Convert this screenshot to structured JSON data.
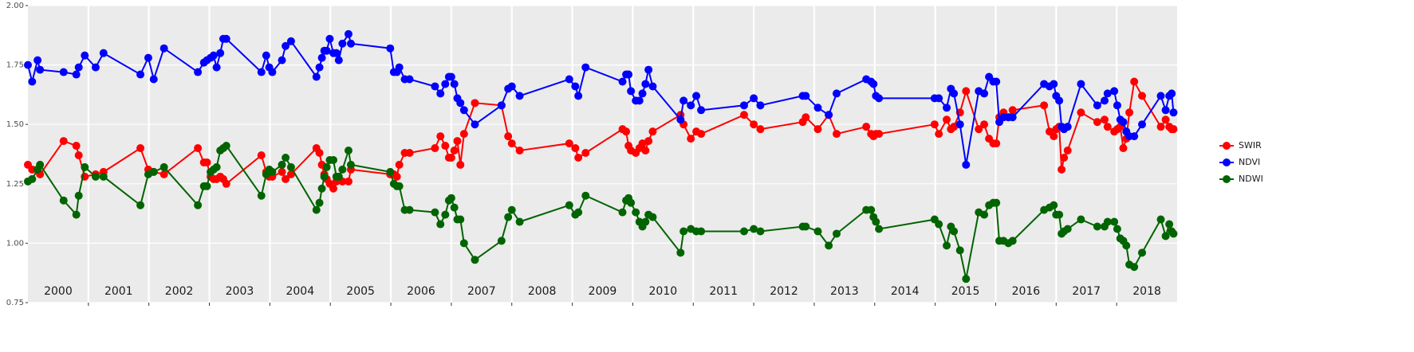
{
  "chart_data": {
    "type": "line",
    "x": [
      2000.0,
      2000.07,
      2000.16,
      2000.2,
      2000.59,
      2000.8,
      2000.84,
      2000.94,
      2001.12,
      2001.25,
      2001.86,
      2001.99,
      2002.08,
      2002.25,
      2002.81,
      2002.91,
      2002.96,
      2003.02,
      2003.07,
      2003.12,
      2003.18,
      2003.23,
      2003.28,
      2003.86,
      2003.94,
      2003.99,
      2004.04,
      2004.2,
      2004.26,
      2004.35,
      2004.77,
      2004.82,
      2004.86,
      2004.9,
      2004.94,
      2004.99,
      2005.05,
      2005.1,
      2005.14,
      2005.2,
      2005.3,
      2005.34,
      2005.99,
      2006.05,
      2006.1,
      2006.14,
      2006.23,
      2006.31,
      2006.73,
      2006.82,
      2006.9,
      2006.96,
      2007.0,
      2007.05,
      2007.1,
      2007.15,
      2007.21,
      2007.39,
      2007.83,
      2007.94,
      2008.0,
      2008.13,
      2008.95,
      2009.05,
      2009.1,
      2009.22,
      2009.83,
      2009.89,
      2009.93,
      2009.97,
      2010.05,
      2010.11,
      2010.16,
      2010.21,
      2010.26,
      2010.33,
      2010.79,
      2010.84,
      2010.96,
      2011.05,
      2011.13,
      2011.84,
      2012.0,
      2012.11,
      2012.81,
      2012.86,
      2013.06,
      2013.24,
      2013.37,
      2013.86,
      2013.94,
      2013.98,
      2014.02,
      2014.07,
      2014.99,
      2015.06,
      2015.19,
      2015.26,
      2015.31,
      2015.41,
      2015.51,
      2015.72,
      2015.81,
      2015.89,
      2015.96,
      2016.01,
      2016.06,
      2016.13,
      2016.21,
      2016.28,
      2016.8,
      2016.89,
      2016.96,
      2017.0,
      2017.05,
      2017.09,
      2017.13,
      2017.19,
      2017.41,
      2017.68,
      2017.8,
      2017.85,
      2017.96,
      2018.01,
      2018.06,
      2018.11,
      2018.16,
      2018.21,
      2018.29,
      2018.42,
      2018.73,
      2018.81,
      2018.87,
      2018.91,
      2018.94
    ],
    "series": [
      {
        "name": "SWIR",
        "color": "#ff0000",
        "values": [
          1.33,
          1.31,
          1.31,
          1.29,
          1.43,
          1.41,
          1.37,
          1.28,
          1.29,
          1.3,
          1.4,
          1.31,
          1.3,
          1.29,
          1.4,
          1.34,
          1.34,
          1.28,
          1.27,
          1.27,
          1.28,
          1.27,
          1.25,
          1.37,
          1.3,
          1.28,
          1.28,
          1.3,
          1.27,
          1.29,
          1.4,
          1.38,
          1.33,
          1.29,
          1.27,
          1.25,
          1.23,
          1.26,
          1.27,
          1.26,
          1.26,
          1.31,
          1.29,
          1.29,
          1.28,
          1.33,
          1.38,
          1.38,
          1.4,
          1.45,
          1.41,
          1.36,
          1.36,
          1.39,
          1.43,
          1.33,
          1.46,
          1.59,
          1.58,
          1.45,
          1.42,
          1.39,
          1.42,
          1.4,
          1.36,
          1.38,
          1.48,
          1.47,
          1.41,
          1.39,
          1.38,
          1.4,
          1.42,
          1.39,
          1.43,
          1.47,
          1.54,
          1.5,
          1.44,
          1.47,
          1.46,
          1.54,
          1.5,
          1.48,
          1.51,
          1.53,
          1.48,
          1.54,
          1.46,
          1.49,
          1.46,
          1.45,
          1.46,
          1.46,
          1.5,
          1.46,
          1.52,
          1.48,
          1.49,
          1.55,
          1.64,
          1.48,
          1.5,
          1.44,
          1.42,
          1.42,
          1.53,
          1.55,
          1.53,
          1.56,
          1.58,
          1.47,
          1.45,
          1.48,
          1.49,
          1.31,
          1.36,
          1.39,
          1.55,
          1.51,
          1.52,
          1.49,
          1.47,
          1.48,
          1.49,
          1.4,
          1.44,
          1.55,
          1.68,
          1.62,
          1.49,
          1.52,
          1.49,
          1.48,
          1.48
        ]
      },
      {
        "name": "NDVI",
        "color": "#0000ff",
        "values": [
          1.75,
          1.68,
          1.77,
          1.73,
          1.72,
          1.71,
          1.74,
          1.79,
          1.74,
          1.8,
          1.71,
          1.78,
          1.69,
          1.82,
          1.72,
          1.76,
          1.77,
          1.78,
          1.79,
          1.74,
          1.8,
          1.86,
          1.86,
          1.72,
          1.79,
          1.74,
          1.72,
          1.77,
          1.83,
          1.85,
          1.7,
          1.74,
          1.78,
          1.81,
          1.81,
          1.86,
          1.8,
          1.8,
          1.77,
          1.84,
          1.88,
          1.84,
          1.82,
          1.72,
          1.72,
          1.74,
          1.69,
          1.69,
          1.66,
          1.63,
          1.67,
          1.7,
          1.7,
          1.67,
          1.61,
          1.59,
          1.56,
          1.5,
          1.58,
          1.65,
          1.66,
          1.62,
          1.69,
          1.66,
          1.62,
          1.74,
          1.68,
          1.71,
          1.71,
          1.64,
          1.6,
          1.6,
          1.63,
          1.67,
          1.73,
          1.66,
          1.52,
          1.6,
          1.58,
          1.62,
          1.56,
          1.58,
          1.61,
          1.58,
          1.62,
          1.62,
          1.57,
          1.54,
          1.63,
          1.69,
          1.68,
          1.67,
          1.62,
          1.61,
          1.61,
          1.61,
          1.57,
          1.65,
          1.63,
          1.5,
          1.33,
          1.64,
          1.63,
          1.7,
          1.68,
          1.68,
          1.51,
          1.53,
          1.53,
          1.53,
          1.67,
          1.66,
          1.67,
          1.62,
          1.6,
          1.49,
          1.48,
          1.49,
          1.67,
          1.58,
          1.6,
          1.63,
          1.64,
          1.58,
          1.52,
          1.51,
          1.47,
          1.45,
          1.45,
          1.5,
          1.62,
          1.56,
          1.62,
          1.63,
          1.55
        ]
      },
      {
        "name": "NDWI",
        "color": "#006400",
        "values": [
          1.26,
          1.27,
          1.31,
          1.33,
          1.18,
          1.12,
          1.2,
          1.32,
          1.28,
          1.28,
          1.16,
          1.29,
          1.3,
          1.32,
          1.16,
          1.24,
          1.24,
          1.3,
          1.31,
          1.32,
          1.39,
          1.4,
          1.41,
          1.2,
          1.29,
          1.31,
          1.3,
          1.33,
          1.36,
          1.32,
          1.14,
          1.17,
          1.23,
          1.28,
          1.32,
          1.35,
          1.35,
          1.28,
          1.28,
          1.31,
          1.39,
          1.33,
          1.3,
          1.25,
          1.24,
          1.24,
          1.14,
          1.14,
          1.13,
          1.08,
          1.12,
          1.18,
          1.19,
          1.15,
          1.1,
          1.1,
          1.0,
          0.93,
          1.01,
          1.11,
          1.14,
          1.09,
          1.16,
          1.12,
          1.13,
          1.2,
          1.13,
          1.18,
          1.19,
          1.17,
          1.13,
          1.09,
          1.07,
          1.09,
          1.12,
          1.11,
          0.96,
          1.05,
          1.06,
          1.05,
          1.05,
          1.05,
          1.06,
          1.05,
          1.07,
          1.07,
          1.05,
          0.99,
          1.04,
          1.14,
          1.14,
          1.11,
          1.09,
          1.06,
          1.1,
          1.08,
          0.99,
          1.07,
          1.05,
          0.97,
          0.85,
          1.13,
          1.12,
          1.16,
          1.17,
          1.17,
          1.01,
          1.01,
          1.0,
          1.01,
          1.14,
          1.15,
          1.16,
          1.12,
          1.12,
          1.04,
          1.05,
          1.06,
          1.1,
          1.07,
          1.07,
          1.09,
          1.09,
          1.06,
          1.02,
          1.01,
          0.99,
          0.91,
          0.9,
          0.96,
          1.1,
          1.03,
          1.08,
          1.05,
          1.04
        ]
      }
    ],
    "xlim": [
      2000,
      2019
    ],
    "xticks": [
      {
        "value": 2000.5,
        "label": "2000"
      },
      {
        "value": 2001.5,
        "label": "2001"
      },
      {
        "value": 2002.5,
        "label": "2002"
      },
      {
        "value": 2003.5,
        "label": "2003"
      },
      {
        "value": 2004.5,
        "label": "2004"
      },
      {
        "value": 2005.5,
        "label": "2005"
      },
      {
        "value": 2006.5,
        "label": "2006"
      },
      {
        "value": 2007.5,
        "label": "2007"
      },
      {
        "value": 2008.5,
        "label": "2008"
      },
      {
        "value": 2009.5,
        "label": "2009"
      },
      {
        "value": 2010.5,
        "label": "2010"
      },
      {
        "value": 2011.5,
        "label": "2011"
      },
      {
        "value": 2012.5,
        "label": "2012"
      },
      {
        "value": 2013.5,
        "label": "2013"
      },
      {
        "value": 2014.5,
        "label": "2014"
      },
      {
        "value": 2015.5,
        "label": "2015"
      },
      {
        "value": 2016.5,
        "label": "2016"
      },
      {
        "value": 2017.5,
        "label": "2017"
      },
      {
        "value": 2018.5,
        "label": "2018"
      }
    ],
    "xgrid": [
      2001,
      2002,
      2003,
      2004,
      2005,
      2006,
      2007,
      2008,
      2009,
      2010,
      2011,
      2012,
      2013,
      2014,
      2015,
      2016,
      2017,
      2018
    ],
    "ylim": [
      0.75,
      2.0
    ],
    "yticks": [
      0.75,
      {
        "value": 1.0,
        "label": "1.00"
      },
      1.25,
      {
        "value": 1.5,
        "label": "1.50"
      },
      1.75,
      {
        "value": 2.0,
        "label": "2.00"
      }
    ],
    "grid": true,
    "legend": "right"
  }
}
